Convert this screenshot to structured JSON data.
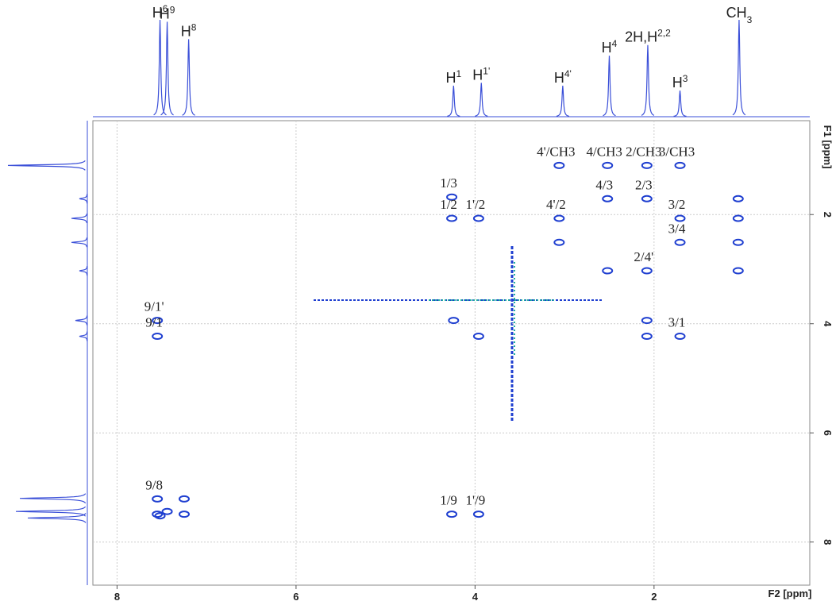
{
  "chart_data": {
    "type": "scatter",
    "x_label": "F2 [ppm]",
    "y_label": "F1 [ppm]",
    "xlim": [
      8.27,
      0.26
    ],
    "ylim": [
      0.28,
      8.79
    ],
    "xticks": [
      8,
      6,
      4,
      2
    ],
    "yticks": [
      2,
      4,
      6,
      8
    ],
    "grid": true,
    "color": "#1f3fd0",
    "x": [
      3.06,
      2.52,
      2.08,
      1.71,
      4.26,
      4.26,
      3.96,
      3.06,
      2.52,
      2.08,
      1.71,
      1.71,
      2.08,
      7.55,
      7.55,
      1.71,
      7.55,
      4.26,
      3.96,
      1.06,
      1.06,
      1.06,
      1.06,
      3.06,
      2.52,
      2.08,
      2.08,
      4.24,
      3.96,
      7.25,
      7.25,
      7.55,
      7.52,
      7.44
    ],
    "y": [
      1.1,
      1.1,
      1.1,
      1.1,
      1.68,
      2.07,
      2.07,
      2.07,
      1.71,
      1.71,
      2.07,
      2.51,
      3.03,
      3.94,
      4.23,
      4.23,
      7.21,
      7.49,
      7.49,
      1.71,
      2.07,
      2.51,
      3.03,
      2.51,
      3.03,
      3.94,
      4.23,
      3.94,
      4.23,
      7.21,
      7.49,
      7.49,
      7.52,
      7.44
    ],
    "labels": [
      "4'/CH3",
      "4/CH3",
      "2/CH3",
      "3/CH3",
      "1/3",
      "1/2",
      "1'/2",
      "4'/2",
      "4/3",
      "2/3",
      "3/2",
      "3/4",
      "2/4'",
      "9/1'",
      "9/1",
      "3/1",
      "9/8",
      "1/9",
      "1'/9",
      null,
      null,
      null,
      null,
      null,
      null,
      null,
      null,
      null,
      null,
      null,
      null,
      null,
      null,
      null
    ],
    "top_spectrum": {
      "color": "#3a4fd8",
      "positions": [
        7.52,
        7.44,
        7.2,
        4.24,
        3.93,
        3.02,
        2.5,
        2.07,
        1.71,
        1.05
      ],
      "intensities": [
        1.0,
        0.98,
        0.8,
        0.32,
        0.35,
        0.32,
        0.63,
        0.74,
        0.27,
        1.0
      ],
      "labels": [
        {
          "text": "H",
          "sup": "6"
        },
        {
          "text": "H",
          "sup": "9"
        },
        {
          "text": "H",
          "sup": "8"
        },
        {
          "text": "H",
          "sup": "1"
        },
        {
          "text": "H",
          "sup": "1'"
        },
        {
          "text": "H",
          "sup": "4'"
        },
        {
          "text": "H",
          "sup": "4"
        },
        {
          "text": "2H,H",
          "sup": "2,2"
        },
        {
          "text": "H",
          "sup": "3"
        },
        {
          "text": "CH",
          "sub": "3"
        }
      ]
    },
    "left_spectrum": {
      "color": "#3a4fd8",
      "positions": [
        1.1,
        1.71,
        2.07,
        2.51,
        3.03,
        3.94,
        4.23,
        7.2,
        7.44,
        7.56
      ],
      "intensities": [
        1.0,
        0.1,
        0.2,
        0.2,
        0.1,
        0.15,
        0.1,
        0.85,
        0.9,
        0.75
      ]
    }
  }
}
